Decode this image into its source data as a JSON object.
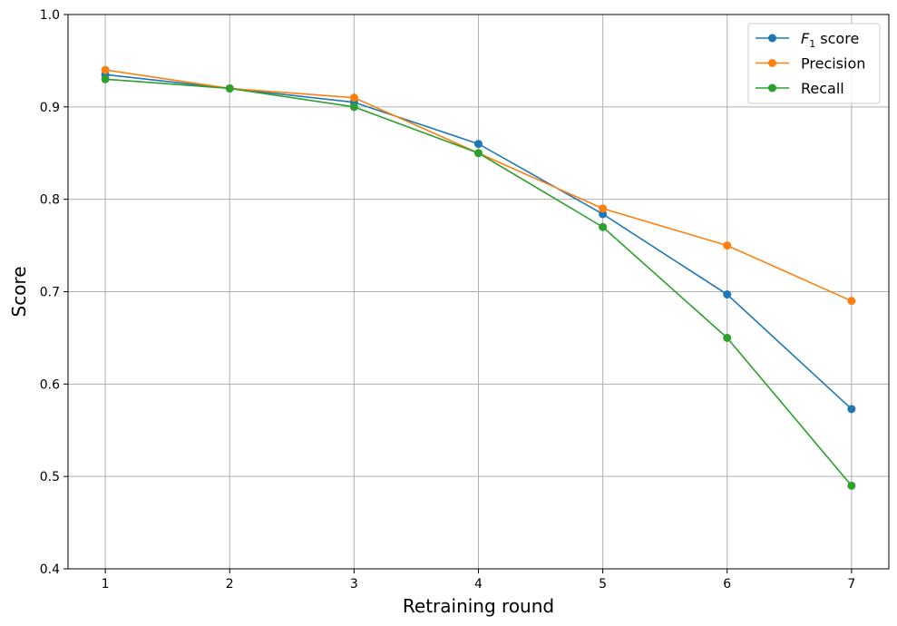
{
  "chart_data": {
    "type": "line",
    "xlabel": "Retraining round",
    "ylabel": "Score",
    "x": [
      1,
      2,
      3,
      4,
      5,
      6,
      7
    ],
    "xticks": [
      "1",
      "2",
      "3",
      "4",
      "5",
      "6",
      "7"
    ],
    "xlim": [
      0.7,
      7.3
    ],
    "ylim": [
      0.4,
      1.0
    ],
    "yticks": [
      "0.4",
      "0.5",
      "0.6",
      "0.7",
      "0.8",
      "0.9",
      "1.0"
    ],
    "grid": true,
    "legend_position": "top-right",
    "series": [
      {
        "name_base": "F",
        "name_sub": "1",
        "name_suffix": " score",
        "color": "#1f77b4",
        "values": [
          0.935,
          0.92,
          0.905,
          0.86,
          0.784,
          0.697,
          0.573
        ]
      },
      {
        "name": "Precision",
        "color": "#ff7f0e",
        "values": [
          0.94,
          0.92,
          0.91,
          0.85,
          0.79,
          0.75,
          0.69
        ]
      },
      {
        "name": "Recall",
        "color": "#2ca02c",
        "values": [
          0.93,
          0.92,
          0.9,
          0.85,
          0.77,
          0.65,
          0.49
        ]
      }
    ]
  }
}
